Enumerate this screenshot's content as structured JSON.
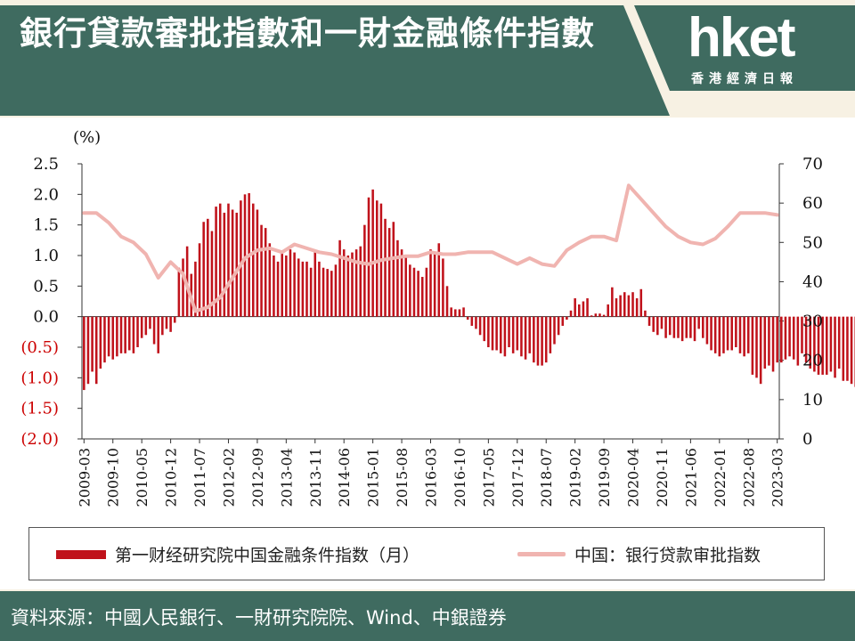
{
  "header": {
    "title": "銀行貸款審批指數和一財金融條件指數",
    "logo_text": "hket",
    "logo_subtext": "香港經濟日報"
  },
  "footer": {
    "source": "資料來源：中國人民銀行、一財研究院院、Wind、中銀證券"
  },
  "colors": {
    "bar": "#c0121b",
    "line": "#f0b4b0",
    "brand": "#3f6b60",
    "negative_tick": "#cc0000"
  },
  "chart_data": {
    "type": "bar",
    "left_axis_unit": "(%)",
    "left_ticks": [
      "2.5",
      "2.0",
      "1.5",
      "1.0",
      "0.5",
      "0.0",
      "(0.5)",
      "(1.0)",
      "(1.5)",
      "(2.0)"
    ],
    "right_ticks": [
      "70",
      "60",
      "50",
      "40",
      "30",
      "20",
      "10",
      "0"
    ],
    "ylim_left": [
      -2.0,
      2.5
    ],
    "ylim_right": [
      0,
      70
    ],
    "x_tick_labels": [
      "2009-03",
      "2009-10",
      "2010-05",
      "2010-12",
      "2011-07",
      "2012-02",
      "2012-09",
      "2013-04",
      "2013-11",
      "2014-06",
      "2015-01",
      "2015-08",
      "2016-03",
      "2016-10",
      "2017-05",
      "2017-12",
      "2018-07",
      "2019-02",
      "2019-09",
      "2020-04",
      "2020-11",
      "2021-06",
      "2022-01",
      "2022-08",
      "2023-03"
    ],
    "series": [
      {
        "name": "第一财经研究院中国金融条件指数（月）",
        "axis": "left",
        "kind": "bar",
        "start": "2009-03",
        "values": [
          -1.2,
          -1.1,
          -0.9,
          -1.1,
          -0.85,
          -0.75,
          -0.65,
          -0.7,
          -0.65,
          -0.6,
          -0.6,
          -0.55,
          -0.6,
          -0.5,
          -0.35,
          -0.3,
          -0.2,
          -0.45,
          -0.6,
          -0.3,
          -0.2,
          -0.25,
          -0.1,
          0.8,
          0.95,
          1.15,
          0.7,
          0.9,
          1.2,
          1.55,
          1.6,
          1.4,
          1.8,
          1.85,
          1.7,
          1.85,
          1.75,
          1.7,
          1.9,
          2.0,
          2.02,
          1.85,
          1.75,
          1.5,
          1.45,
          1.2,
          1.0,
          0.9,
          1.05,
          1.0,
          1.1,
          1.05,
          0.95,
          0.9,
          0.9,
          0.8,
          1.05,
          0.9,
          0.8,
          0.78,
          0.75,
          0.85,
          1.25,
          1.1,
          1.0,
          1.05,
          1.1,
          1.15,
          1.5,
          1.95,
          2.08,
          1.9,
          1.85,
          1.6,
          1.45,
          1.55,
          1.25,
          1.1,
          1.0,
          0.85,
          0.8,
          0.75,
          0.65,
          0.8,
          1.1,
          1.05,
          1.2,
          0.95,
          0.5,
          0.15,
          0.12,
          0.12,
          0.15,
          -0.05,
          -0.15,
          -0.2,
          -0.3,
          -0.4,
          -0.5,
          -0.55,
          -0.55,
          -0.6,
          -0.65,
          -0.5,
          -0.6,
          -0.55,
          -0.65,
          -0.7,
          -0.6,
          -0.75,
          -0.8,
          -0.8,
          -0.75,
          -0.6,
          -0.45,
          -0.3,
          -0.15,
          -0.05,
          0.1,
          0.3,
          0.2,
          0.25,
          0.3,
          0.02,
          0.05,
          0.05,
          0.03,
          0.2,
          0.48,
          0.3,
          0.35,
          0.4,
          0.35,
          0.4,
          0.3,
          0.45,
          0.1,
          -0.15,
          -0.25,
          -0.3,
          -0.2,
          -0.35,
          -0.3,
          -0.35,
          -0.35,
          -0.4,
          -0.35,
          -0.35,
          -0.4,
          -0.2,
          -0.35,
          -0.45,
          -0.55,
          -0.6,
          -0.65,
          -0.6,
          -0.55,
          -0.55,
          -0.5,
          -0.6,
          -0.65,
          -0.6,
          -0.95,
          -1.0,
          -1.1,
          -0.85,
          -0.8,
          -0.9,
          -0.75,
          -0.75,
          -0.7,
          -0.65,
          -0.7,
          -0.8,
          -0.6,
          -0.75,
          -0.85,
          -0.9,
          -0.95,
          -0.95,
          -0.95,
          -0.9,
          -1.0,
          -0.85,
          -1.05,
          -1.05,
          -1.1,
          -1.15,
          -1.1,
          -1.2,
          -1.3,
          -1.4,
          -1.55,
          -1.6,
          -1.6,
          -1.6,
          -1.3,
          -1.1,
          -0.7,
          -1.0,
          -1.1,
          -1.15,
          -1.2
        ]
      },
      {
        "name": "中国：银行贷款审批指数",
        "axis": "right",
        "kind": "line",
        "points": [
          [
            "2009-03",
            57.5
          ],
          [
            "2009-06",
            57.5
          ],
          [
            "2009-09",
            55
          ],
          [
            "2009-12",
            51.5
          ],
          [
            "2010-03",
            50
          ],
          [
            "2010-06",
            47
          ],
          [
            "2010-09",
            41
          ],
          [
            "2010-12",
            45
          ],
          [
            "2011-03",
            42
          ],
          [
            "2011-06",
            32.5
          ],
          [
            "2011-09",
            33.5
          ],
          [
            "2011-12",
            36
          ],
          [
            "2012-03",
            41
          ],
          [
            "2012-06",
            46
          ],
          [
            "2012-09",
            48
          ],
          [
            "2012-12",
            48.5
          ],
          [
            "2013-03",
            47.5
          ],
          [
            "2013-06",
            49.5
          ],
          [
            "2013-09",
            48.5
          ],
          [
            "2013-12",
            47.5
          ],
          [
            "2014-03",
            47
          ],
          [
            "2014-06",
            46
          ],
          [
            "2014-09",
            45
          ],
          [
            "2014-12",
            44.5
          ],
          [
            "2015-03",
            45.5
          ],
          [
            "2015-06",
            46
          ],
          [
            "2015-09",
            46.5
          ],
          [
            "2015-12",
            46.5
          ],
          [
            "2016-03",
            47.5
          ],
          [
            "2016-06",
            47
          ],
          [
            "2016-09",
            47
          ],
          [
            "2016-12",
            47.5
          ],
          [
            "2017-03",
            47.5
          ],
          [
            "2017-06",
            47.5
          ],
          [
            "2017-09",
            46
          ],
          [
            "2017-12",
            44.5
          ],
          [
            "2018-03",
            46
          ],
          [
            "2018-06",
            44.5
          ],
          [
            "2018-09",
            44
          ],
          [
            "2018-12",
            48
          ],
          [
            "2019-03",
            50
          ],
          [
            "2019-06",
            51.5
          ],
          [
            "2019-09",
            51.5
          ],
          [
            "2019-12",
            50.5
          ],
          [
            "2020-03",
            64.5
          ],
          [
            "2020-06",
            61
          ],
          [
            "2020-09",
            57.5
          ],
          [
            "2020-12",
            54
          ],
          [
            "2021-03",
            51.5
          ],
          [
            "2021-06",
            50
          ],
          [
            "2021-09",
            49.5
          ],
          [
            "2021-12",
            51
          ],
          [
            "2022-03",
            54
          ],
          [
            "2022-06",
            57.5
          ],
          [
            "2022-09",
            57.5
          ],
          [
            "2022-12",
            57.5
          ],
          [
            "2023-03",
            57
          ]
        ]
      }
    ],
    "legend_position": "bottom"
  }
}
